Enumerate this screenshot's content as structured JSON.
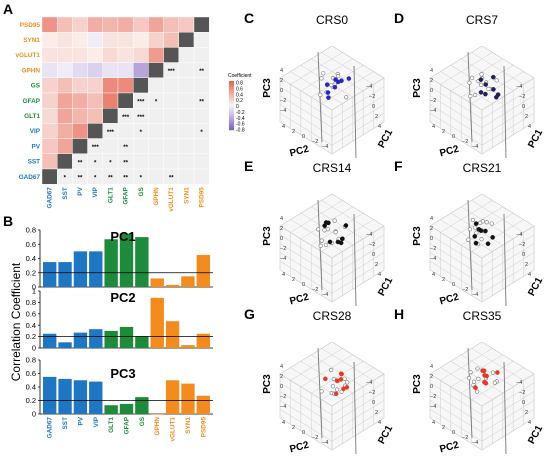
{
  "panel_labels": [
    "A",
    "B",
    "C",
    "D",
    "E",
    "F",
    "G",
    "H"
  ],
  "genes": [
    "GAD67",
    "SST",
    "PV",
    "VIP",
    "GLT1",
    "GFAP",
    "GS",
    "GPHN",
    "vGLUT1",
    "SYN1",
    "PSD95"
  ],
  "gene_colors": [
    "#1f77c4",
    "#1f77c4",
    "#1f77c4",
    "#1f77c4",
    "#1e8a3c",
    "#1e8a3c",
    "#1e8a3c",
    "#f28c1e",
    "#f28c1e",
    "#f28c1e",
    "#f28c1e"
  ],
  "colors": {
    "inhibitory": "#1f77c4",
    "astrocytic": "#1e8a3c",
    "synaptic": "#f28c1e",
    "diag": "#555555",
    "hilite_red": "#e23b2a"
  },
  "heatmap": {
    "colorbar_title": "Coefficient",
    "colorbar_ticks": [
      "0.8",
      "0.6",
      "0.4",
      "0.2",
      "0",
      "-0.2",
      "-0.4",
      "-0.6",
      "-0.8"
    ],
    "values": [
      [
        1,
        0.3,
        0.25,
        0.2,
        0.15,
        0.2,
        0.2,
        -0.1,
        0.1,
        0.05,
        0.55
      ],
      [
        0.3,
        1,
        0.45,
        0.4,
        0.45,
        0.45,
        0.3,
        -0.05,
        0.1,
        0.1,
        0.3
      ],
      [
        0.25,
        0.45,
        1,
        0.55,
        0.35,
        0.4,
        0.2,
        -0.15,
        0.1,
        0.05,
        0.2
      ],
      [
        0.2,
        0.4,
        0.55,
        1,
        0.3,
        0.3,
        0.2,
        -0.2,
        0.05,
        -0.05,
        0.4
      ],
      [
        0.15,
        0.45,
        0.35,
        0.3,
        1,
        0.65,
        0.6,
        -0.1,
        0.15,
        0.1,
        0.35
      ],
      [
        0.2,
        0.45,
        0.4,
        0.3,
        0.65,
        1,
        0.6,
        -0.1,
        0.1,
        0.1,
        0.4
      ],
      [
        0.2,
        0.3,
        0.2,
        0.2,
        0.6,
        0.6,
        1,
        -0.45,
        0.15,
        0.05,
        0.25
      ],
      [
        -0.1,
        -0.05,
        -0.15,
        -0.2,
        -0.1,
        -0.1,
        -0.45,
        1,
        0.5,
        0.2,
        0.45
      ],
      [
        0.1,
        0.1,
        0.1,
        0.05,
        0.15,
        0.1,
        0.15,
        0.5,
        1,
        0.3,
        0.3
      ],
      [
        0.05,
        0.1,
        0.05,
        -0.05,
        0.1,
        0.1,
        0.05,
        0.2,
        0.3,
        1,
        0.25
      ],
      [
        0.55,
        0.3,
        0.2,
        0.4,
        0.35,
        0.4,
        0.25,
        0.45,
        0.3,
        0.25,
        1
      ]
    ],
    "stars": [
      {
        "row": 10,
        "col": 1,
        "text": "*"
      },
      {
        "row": 10,
        "col": 2,
        "text": "**"
      },
      {
        "row": 10,
        "col": 3,
        "text": "*"
      },
      {
        "row": 10,
        "col": 4,
        "text": "**"
      },
      {
        "row": 10,
        "col": 5,
        "text": "**"
      },
      {
        "row": 10,
        "col": 6,
        "text": "*"
      },
      {
        "row": 10,
        "col": 8,
        "text": "**"
      },
      {
        "row": 9,
        "col": 2,
        "text": "**"
      },
      {
        "row": 9,
        "col": 3,
        "text": "*"
      },
      {
        "row": 9,
        "col": 4,
        "text": "*"
      },
      {
        "row": 9,
        "col": 5,
        "text": "**"
      },
      {
        "row": 8,
        "col": 3,
        "text": "***"
      },
      {
        "row": 8,
        "col": 5,
        "text": "**"
      },
      {
        "row": 7,
        "col": 4,
        "text": "***"
      },
      {
        "row": 7,
        "col": 6,
        "text": "*"
      },
      {
        "row": 7,
        "col": 10,
        "text": "*"
      },
      {
        "row": 6,
        "col": 5,
        "text": "***"
      },
      {
        "row": 6,
        "col": 6,
        "text": "***"
      },
      {
        "row": 5,
        "col": 6,
        "text": "***"
      },
      {
        "row": 5,
        "col": 7,
        "text": "*"
      },
      {
        "row": 5,
        "col": 10,
        "text": "**"
      },
      {
        "row": 3,
        "col": 8,
        "text": "***"
      },
      {
        "row": 3,
        "col": 10,
        "text": "**"
      }
    ]
  },
  "chart_data": [
    {
      "type": "bar",
      "title": "PC1",
      "ylabel": "Correlation Coefficient",
      "ylim": [
        0,
        0.8
      ],
      "yticks": [
        "0",
        "0.2",
        "0.4",
        "0.6",
        "0.8"
      ],
      "threshold": 0.2,
      "categories": [
        "GAD67",
        "SST",
        "PV",
        "VIP",
        "GLT1",
        "GFAP",
        "GS",
        "GPHN",
        "vGLUT1",
        "SYN1",
        "PSD95"
      ],
      "values": [
        0.35,
        0.35,
        0.5,
        0.5,
        0.67,
        0.75,
        0.7,
        0.12,
        0.03,
        0.15,
        0.45
      ]
    },
    {
      "type": "bar",
      "title": "PC2",
      "ylabel": "Correlation Coefficient",
      "ylim": [
        0,
        1
      ],
      "yticks": [
        "0",
        "0.2",
        "0.4",
        "0.6",
        "0.8",
        "1"
      ],
      "threshold": 0.2,
      "categories": [
        "GAD67",
        "SST",
        "PV",
        "VIP",
        "GLT1",
        "GFAP",
        "GS",
        "GPHN",
        "vGLUT1",
        "SYN1",
        "PSD95"
      ],
      "values": [
        0.25,
        0.1,
        0.27,
        0.33,
        0.3,
        0.37,
        0.21,
        0.88,
        0.47,
        0.05,
        0.25
      ]
    },
    {
      "type": "bar",
      "title": "PC3",
      "ylabel": "Correlation Coefficient",
      "ylim": [
        0,
        0.8
      ],
      "yticks": [
        "0",
        "0.2",
        "0.4",
        "0.6",
        "0.8"
      ],
      "threshold": 0.2,
      "categories": [
        "GAD67",
        "SST",
        "PV",
        "VIP",
        "GLT1",
        "GFAP",
        "GS",
        "GPHN",
        "vGLUT1",
        "SYN1",
        "PSD95"
      ],
      "values": [
        0.55,
        0.52,
        0.5,
        0.48,
        0.13,
        0.15,
        0.25,
        0.0,
        0.5,
        0.45,
        0.27
      ]
    }
  ],
  "pca_plots": [
    {
      "label": "C",
      "title": "CRS0",
      "color": "#2828c0"
    },
    {
      "label": "D",
      "title": "CRS7",
      "color": "#20205a"
    },
    {
      "label": "E",
      "title": "CRS14",
      "color": "#111111"
    },
    {
      "label": "F",
      "title": "CRS21",
      "color": "#111111"
    },
    {
      "label": "G",
      "title": "CRS28",
      "color": "#e23b2a"
    },
    {
      "label": "H",
      "title": "CRS35",
      "color": "#e23b2a"
    }
  ],
  "pca_axes": {
    "pc1": "PC1",
    "pc2": "PC2",
    "pc3": "PC3",
    "ticks": [
      "4",
      "2",
      "0",
      "−2",
      "−4"
    ]
  }
}
